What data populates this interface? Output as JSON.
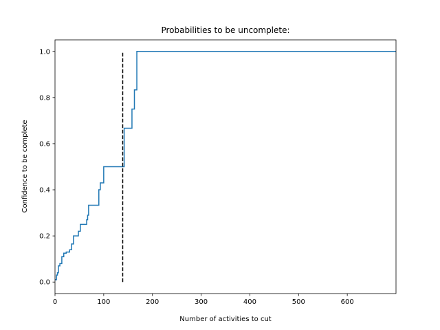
{
  "chart_data": {
    "type": "line",
    "title": "Probabilities to be uncomplete:",
    "xlabel": "Number of activities to cut",
    "ylabel": "Confidence to be complete",
    "xlim": [
      0,
      700
    ],
    "ylim": [
      -0.05,
      1.05
    ],
    "xticks": [
      0,
      100,
      200,
      300,
      400,
      500,
      600
    ],
    "yticks": [
      0.0,
      0.2,
      0.4,
      0.6,
      0.8,
      1.0
    ],
    "xtick_labels": [
      "0",
      "100",
      "200",
      "300",
      "400",
      "500",
      "600"
    ],
    "ytick_labels": [
      "0.0",
      "0.2",
      "0.4",
      "0.6",
      "0.8",
      "1.0"
    ],
    "grid": false,
    "series": [
      {
        "color": "#1f77b4",
        "style": "step",
        "x": [
          0,
          3,
          5,
          7,
          10,
          14,
          18,
          23,
          30,
          34,
          38,
          48,
          52,
          56,
          65,
          67,
          69,
          88,
          90,
          93,
          100,
          140,
          142,
          158,
          163,
          168,
          170,
          700
        ],
        "y": [
          0.01,
          0.03,
          0.04,
          0.07,
          0.08,
          0.11,
          0.125,
          0.13,
          0.14,
          0.165,
          0.2,
          0.22,
          0.25,
          0.25,
          0.27,
          0.29,
          0.333,
          0.333,
          0.4,
          0.43,
          0.5,
          0.5,
          0.667,
          0.75,
          0.833,
          1.0,
          1.0,
          1.0
        ]
      }
    ],
    "vlines": [
      {
        "x": 139,
        "ymin": 0.0,
        "ymax": 1.0,
        "color": "#000000",
        "linestyle": "dashed"
      }
    ]
  }
}
